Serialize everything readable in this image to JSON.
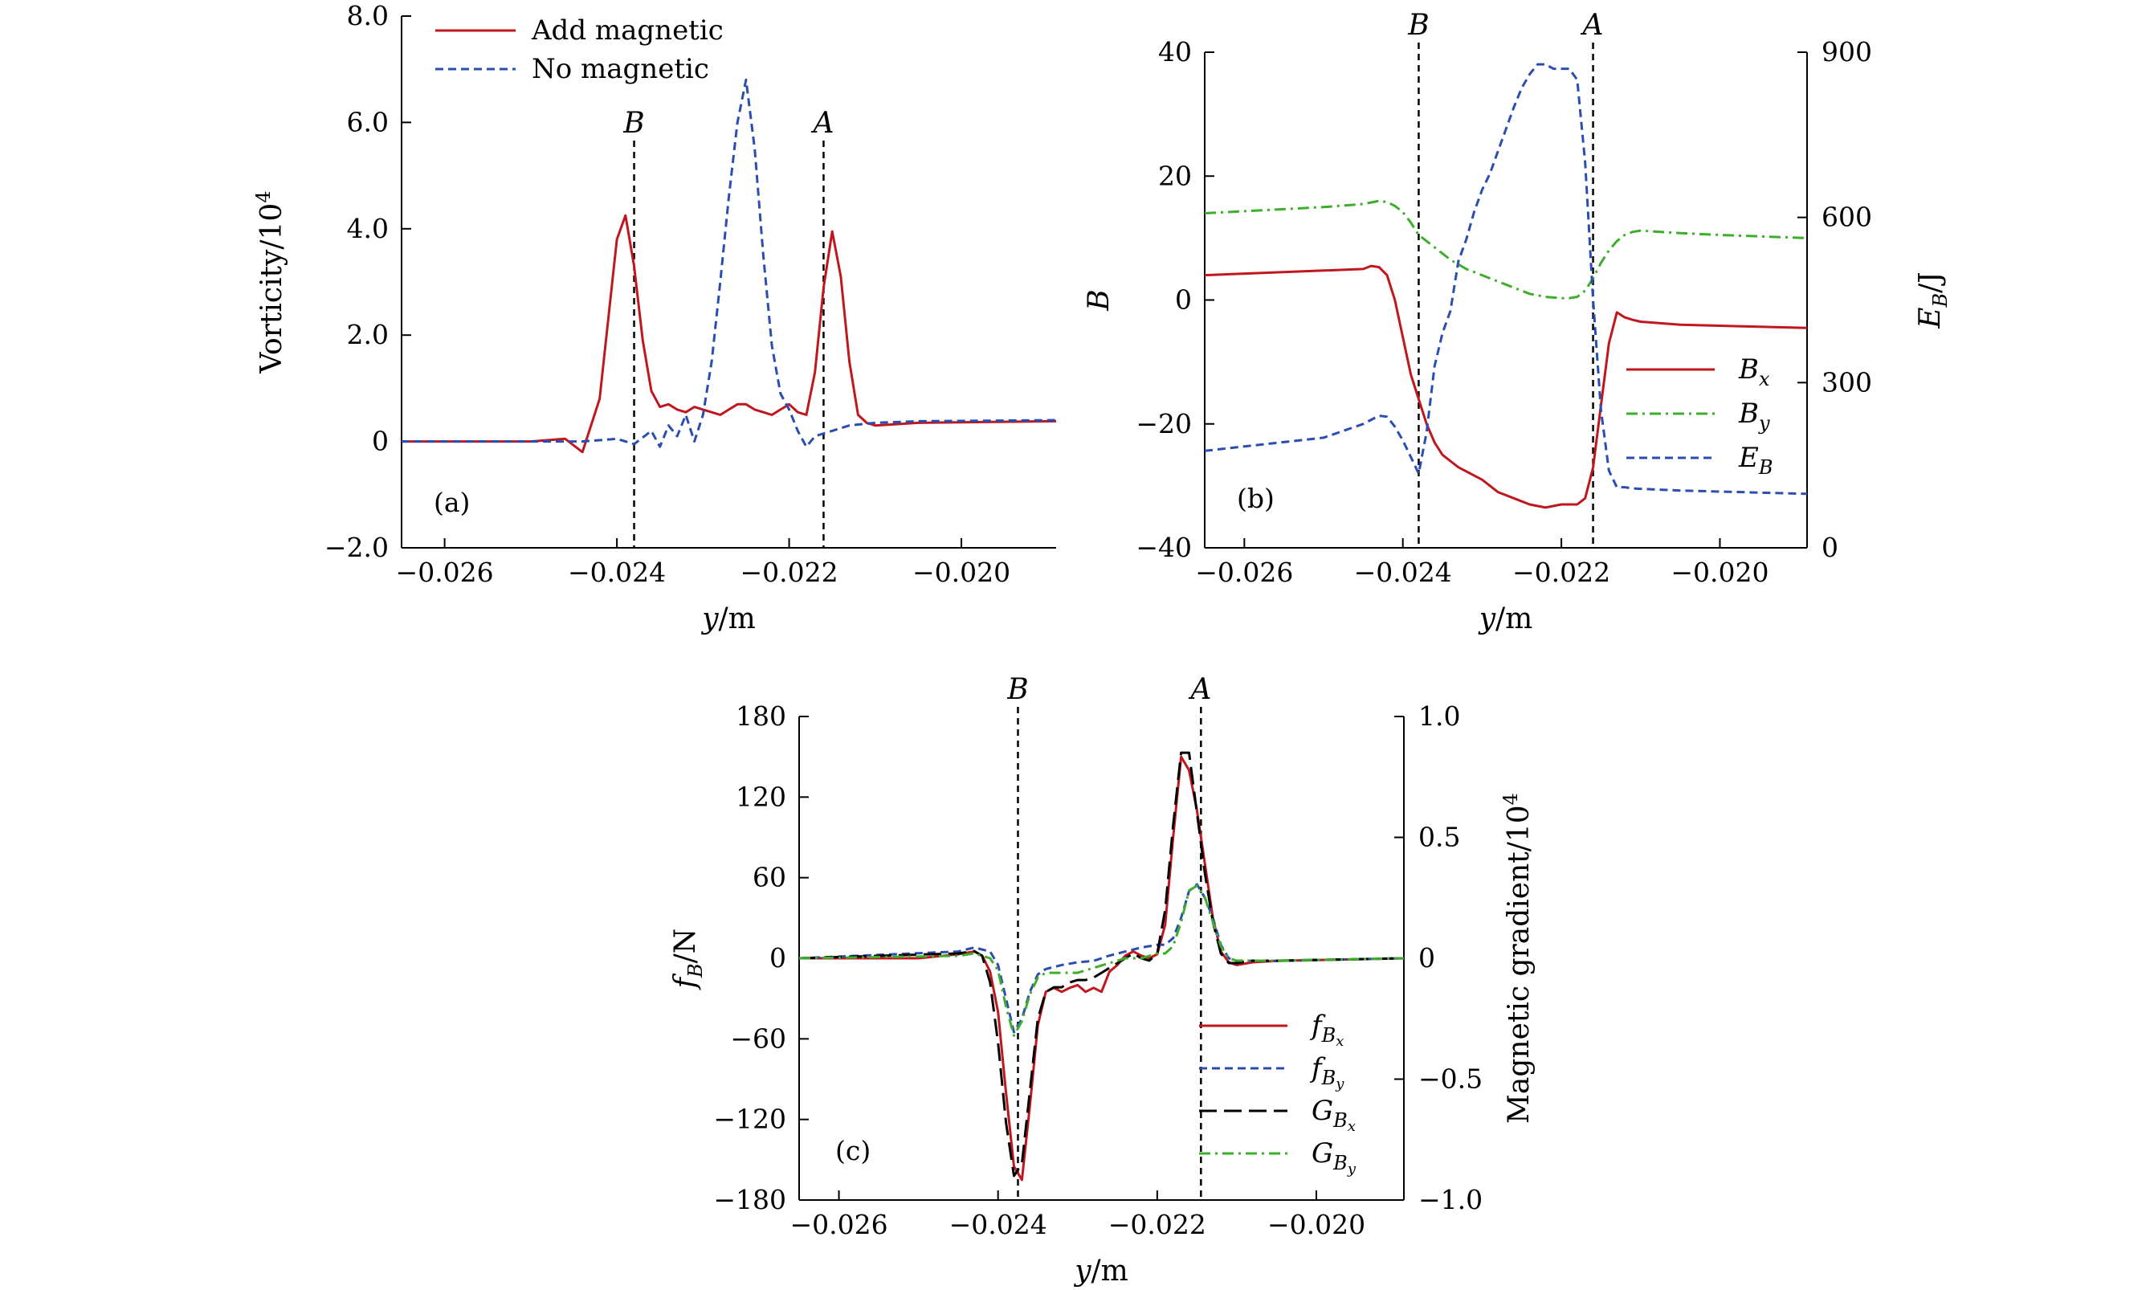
{
  "figure": {
    "colors": {
      "red": "#c0161d",
      "blue": "#2a4db0",
      "green": "#3dae2b",
      "black": "#000000"
    }
  },
  "chart_data": [
    {
      "id": "a",
      "type": "line",
      "panel_label": "(a)",
      "xlabel": "y/m",
      "ylabel": "Vorticity/10",
      "ylabel_exp": "4",
      "xlim": [
        -0.0265,
        -0.0189
      ],
      "ylim": [
        -2.0,
        8.0
      ],
      "xticks": [
        -0.026,
        -0.024,
        -0.022,
        -0.02
      ],
      "xtick_labels": [
        "−0.026",
        "−0.024",
        "−0.022",
        "−0.020"
      ],
      "yticks": [
        -2,
        0,
        2,
        4,
        6,
        8
      ],
      "ytick_labels": [
        "−2.0",
        "0",
        "2.0",
        "4.0",
        "6.0",
        "8.0"
      ],
      "vlines": [
        {
          "x": -0.0238,
          "label": "B"
        },
        {
          "x": -0.0216,
          "label": "A"
        }
      ],
      "legend_position": "top-left",
      "series": [
        {
          "name": "Add magnetic",
          "style": "solid",
          "color": "#c0161d",
          "axis": "left",
          "x": [
            -0.0265,
            -0.025,
            -0.0246,
            -0.0244,
            -0.0242,
            -0.024,
            -0.0239,
            -0.0238,
            -0.0237,
            -0.0236,
            -0.0235,
            -0.0234,
            -0.0233,
            -0.0232,
            -0.0231,
            -0.023,
            -0.0229,
            -0.0228,
            -0.0227,
            -0.0226,
            -0.0225,
            -0.0224,
            -0.0223,
            -0.0222,
            -0.0221,
            -0.022,
            -0.0219,
            -0.0218,
            -0.0217,
            -0.0216,
            -0.0215,
            -0.0214,
            -0.0213,
            -0.0212,
            -0.0211,
            -0.021,
            -0.0205,
            -0.0189
          ],
          "y": [
            0,
            0,
            0.05,
            -0.2,
            0.8,
            3.8,
            4.25,
            3.3,
            1.9,
            0.95,
            0.65,
            0.7,
            0.6,
            0.55,
            0.65,
            0.6,
            0.55,
            0.5,
            0.6,
            0.7,
            0.7,
            0.6,
            0.55,
            0.5,
            0.6,
            0.7,
            0.55,
            0.5,
            1.3,
            2.9,
            3.95,
            3.1,
            1.5,
            0.5,
            0.35,
            0.3,
            0.35,
            0.38
          ]
        },
        {
          "name": "No magnetic",
          "style": "dashed",
          "color": "#2a4db0",
          "axis": "left",
          "x": [
            -0.0265,
            -0.0244,
            -0.024,
            -0.0238,
            -0.0236,
            -0.0235,
            -0.0234,
            -0.0233,
            -0.0232,
            -0.0231,
            -0.023,
            -0.0229,
            -0.0228,
            -0.0227,
            -0.0226,
            -0.0225,
            -0.0224,
            -0.0223,
            -0.0222,
            -0.0221,
            -0.022,
            -0.0219,
            -0.0218,
            -0.0217,
            -0.0216,
            -0.0215,
            -0.0214,
            -0.0213,
            -0.021,
            -0.0205,
            -0.0189
          ],
          "y": [
            0,
            0,
            0.05,
            -0.05,
            0.2,
            -0.1,
            0.3,
            0.1,
            0.5,
            0.0,
            0.5,
            1.5,
            3.0,
            4.6,
            6.0,
            6.8,
            5.5,
            3.5,
            1.8,
            0.9,
            0.6,
            0.2,
            -0.1,
            0.1,
            0.15,
            0.2,
            0.25,
            0.3,
            0.35,
            0.38,
            0.4
          ]
        }
      ]
    },
    {
      "id": "b",
      "type": "line",
      "panel_label": "(b)",
      "xlabel": "y/m",
      "ylabel": "B",
      "ylabel_right": "E",
      "ylabel_right_sub": "B",
      "ylabel_right_unit": "/J",
      "xlim": [
        -0.0265,
        -0.0189
      ],
      "ylim": [
        -40,
        40
      ],
      "ylim_right": [
        0,
        900
      ],
      "xticks": [
        -0.026,
        -0.024,
        -0.022,
        -0.02
      ],
      "xtick_labels": [
        "−0.026",
        "−0.024",
        "−0.022",
        "−0.020"
      ],
      "yticks": [
        -40,
        -20,
        0,
        20,
        40
      ],
      "ytick_labels": [
        "−40",
        "−20",
        "0",
        "20",
        "40"
      ],
      "yticks_right": [
        0,
        300,
        600,
        900
      ],
      "ytick_labels_right": [
        "0",
        "300",
        "600",
        "900"
      ],
      "vlines": [
        {
          "x": -0.0238,
          "label": "B"
        },
        {
          "x": -0.0216,
          "label": "A"
        }
      ],
      "legend_position": "center-right",
      "series": [
        {
          "name": "B",
          "sub": "x",
          "style": "solid",
          "color": "#c0161d",
          "axis": "left",
          "x": [
            -0.0265,
            -0.0245,
            -0.0244,
            -0.0243,
            -0.0242,
            -0.0241,
            -0.024,
            -0.0239,
            -0.0238,
            -0.0237,
            -0.0236,
            -0.0235,
            -0.0234,
            -0.0233,
            -0.023,
            -0.0228,
            -0.0226,
            -0.0224,
            -0.0222,
            -0.022,
            -0.0218,
            -0.0217,
            -0.0216,
            -0.0215,
            -0.0214,
            -0.0213,
            -0.0212,
            -0.0211,
            -0.021,
            -0.0205,
            -0.0189
          ],
          "y": [
            4,
            5,
            5.5,
            5.3,
            4,
            0,
            -6,
            -12,
            -16,
            -20,
            -23,
            -25,
            -26,
            -27,
            -29,
            -31,
            -32,
            -33,
            -33.5,
            -33,
            -33,
            -32,
            -27,
            -17,
            -7,
            -2,
            -2.8,
            -3.2,
            -3.5,
            -4,
            -4.5
          ]
        },
        {
          "name": "B",
          "sub": "y",
          "style": "dashdot",
          "color": "#3dae2b",
          "axis": "left",
          "x": [
            -0.0265,
            -0.025,
            -0.0245,
            -0.0243,
            -0.0242,
            -0.0241,
            -0.024,
            -0.0239,
            -0.0238,
            -0.0236,
            -0.0234,
            -0.0232,
            -0.023,
            -0.0228,
            -0.0226,
            -0.0224,
            -0.0222,
            -0.022,
            -0.0219,
            -0.0218,
            -0.0217,
            -0.0216,
            -0.0215,
            -0.0214,
            -0.0213,
            -0.0212,
            -0.0211,
            -0.021,
            -0.0205,
            -0.02,
            -0.0189
          ],
          "y": [
            14,
            15,
            15.5,
            16,
            15.8,
            15.2,
            14.2,
            12.5,
            10.5,
            8.5,
            6.5,
            5.0,
            4.0,
            3.0,
            2.0,
            1.0,
            0.5,
            0.3,
            0.3,
            0.5,
            1.5,
            3.5,
            6.0,
            8.0,
            9.5,
            10.5,
            11,
            11.2,
            10.8,
            10.5,
            10
          ]
        },
        {
          "name": "E",
          "sub": "B",
          "style": "dashed",
          "color": "#2a4db0",
          "axis": "right",
          "x": [
            -0.0265,
            -0.025,
            -0.0245,
            -0.0243,
            -0.0242,
            -0.0241,
            -0.024,
            -0.0239,
            -0.0238,
            -0.0237,
            -0.0236,
            -0.0235,
            -0.0234,
            -0.0233,
            -0.0232,
            -0.0231,
            -0.023,
            -0.0229,
            -0.0228,
            -0.0227,
            -0.0226,
            -0.0225,
            -0.0224,
            -0.0223,
            -0.0222,
            -0.0221,
            -0.022,
            -0.0219,
            -0.0218,
            -0.0217,
            -0.0216,
            -0.0215,
            -0.0214,
            -0.0213,
            -0.0212,
            -0.0211,
            -0.021,
            -0.0205,
            -0.0189
          ],
          "y": [
            176,
            200,
            225,
            240,
            238,
            220,
            195,
            165,
            135,
            210,
            330,
            390,
            430,
            520,
            560,
            610,
            650,
            680,
            720,
            760,
            800,
            835,
            860,
            878,
            878,
            870,
            870,
            870,
            850,
            700,
            450,
            250,
            140,
            110,
            110,
            108,
            107,
            104,
            98
          ]
        }
      ]
    },
    {
      "id": "c",
      "type": "line",
      "panel_label": "(c)",
      "xlabel": "y/m",
      "ylabel": "f",
      "ylabel_sub": "B",
      "ylabel_unit": "/N",
      "ylabel_right": "Magnetic gradient/10",
      "ylabel_right_exp": "4",
      "xlim": [
        -0.0265,
        -0.0189
      ],
      "ylim": [
        -180,
        180
      ],
      "ylim_right": [
        -1.0,
        1.0
      ],
      "xticks": [
        -0.026,
        -0.024,
        -0.022,
        -0.02
      ],
      "xtick_labels": [
        "−0.026",
        "−0.024",
        "−0.022",
        "−0.020"
      ],
      "yticks": [
        -180,
        -120,
        -60,
        0,
        60,
        120,
        180
      ],
      "ytick_labels": [
        "−180",
        "−120",
        "−60",
        "0",
        "60",
        "120",
        "180"
      ],
      "yticks_right": [
        -1.0,
        -0.5,
        0,
        0.5,
        1.0
      ],
      "ytick_labels_right": [
        "−1.0",
        "−0.5",
        "0",
        "0.5",
        "1.0"
      ],
      "vlines": [
        {
          "x": -0.02375,
          "label": "B"
        },
        {
          "x": -0.02145,
          "label": "A"
        }
      ],
      "legend_position": "bottom-right",
      "series": [
        {
          "name": "f",
          "sub": "Bx",
          "style": "solid",
          "color": "#c0161d",
          "axis": "left",
          "x": [
            -0.0265,
            -0.025,
            -0.0245,
            -0.0243,
            -0.0242,
            -0.0241,
            -0.024,
            -0.0239,
            -0.0238,
            -0.0237,
            -0.0236,
            -0.0235,
            -0.0234,
            -0.0233,
            -0.0232,
            -0.0231,
            -0.023,
            -0.0229,
            -0.0228,
            -0.0227,
            -0.0226,
            -0.0225,
            -0.0224,
            -0.0223,
            -0.0222,
            -0.0221,
            -0.022,
            -0.0219,
            -0.0218,
            -0.0217,
            -0.0216,
            -0.0215,
            -0.0214,
            -0.0213,
            -0.0212,
            -0.0211,
            -0.021,
            -0.0208,
            -0.0205,
            -0.0189
          ],
          "y": [
            0,
            0,
            3,
            5,
            2,
            -10,
            -40,
            -100,
            -155,
            -165,
            -110,
            -50,
            -25,
            -22,
            -25,
            -22,
            -20,
            -25,
            -22,
            -25,
            -10,
            -5,
            2,
            5,
            2,
            0,
            3,
            25,
            90,
            150,
            140,
            110,
            70,
            30,
            5,
            -3,
            -5,
            -3,
            -2,
            0
          ]
        },
        {
          "name": "f",
          "sub": "By",
          "style": "dashed",
          "color": "#2a4db0",
          "axis": "left",
          "x": [
            -0.0265,
            -0.0245,
            -0.0243,
            -0.0241,
            -0.024,
            -0.0239,
            -0.0238,
            -0.0237,
            -0.0236,
            -0.0235,
            -0.0234,
            -0.0232,
            -0.023,
            -0.0228,
            -0.0226,
            -0.0224,
            -0.0222,
            -0.022,
            -0.0219,
            -0.0218,
            -0.0217,
            -0.0216,
            -0.0215,
            -0.0214,
            -0.0213,
            -0.0212,
            -0.0211,
            -0.021,
            -0.0205,
            -0.0189
          ],
          "y": [
            0,
            5,
            8,
            5,
            -5,
            -30,
            -55,
            -45,
            -25,
            -12,
            -8,
            -5,
            -3,
            -2,
            2,
            5,
            8,
            10,
            10,
            15,
            30,
            50,
            55,
            45,
            30,
            10,
            0,
            -2,
            -2,
            0
          ]
        },
        {
          "name": "G",
          "sub": "Bx",
          "style": "longdash",
          "color": "#000000",
          "axis": "right",
          "x": [
            -0.0265,
            -0.0245,
            -0.0243,
            -0.0242,
            -0.0241,
            -0.024,
            -0.0239,
            -0.0238,
            -0.0237,
            -0.0236,
            -0.0235,
            -0.0234,
            -0.0233,
            -0.0232,
            -0.0231,
            -0.023,
            -0.0229,
            -0.0228,
            -0.0227,
            -0.0226,
            -0.0225,
            -0.0224,
            -0.0223,
            -0.0222,
            -0.0221,
            -0.022,
            -0.0219,
            -0.0218,
            -0.0217,
            -0.0216,
            -0.0215,
            -0.0214,
            -0.0213,
            -0.0212,
            -0.0211,
            -0.021,
            -0.0208,
            -0.0205,
            -0.0189
          ],
          "y": [
            0,
            0.02,
            0.03,
            0.01,
            -0.1,
            -0.35,
            -0.68,
            -0.9,
            -0.85,
            -0.55,
            -0.25,
            -0.14,
            -0.12,
            -0.12,
            -0.1,
            -0.09,
            -0.09,
            -0.08,
            -0.06,
            -0.04,
            -0.02,
            0.0,
            0.02,
            0.0,
            -0.01,
            0.02,
            0.2,
            0.55,
            0.85,
            0.85,
            0.6,
            0.35,
            0.15,
            0.02,
            -0.02,
            -0.02,
            -0.01,
            -0.01,
            0
          ]
        },
        {
          "name": "G",
          "sub": "By",
          "style": "dashdot",
          "color": "#3dae2b",
          "axis": "right",
          "x": [
            -0.0265,
            -0.0245,
            -0.0243,
            -0.0241,
            -0.024,
            -0.0239,
            -0.0238,
            -0.0237,
            -0.0236,
            -0.0235,
            -0.0234,
            -0.0232,
            -0.023,
            -0.0228,
            -0.0226,
            -0.0224,
            -0.0222,
            -0.022,
            -0.0219,
            -0.0218,
            -0.0217,
            -0.0216,
            -0.0215,
            -0.0214,
            -0.0213,
            -0.0212,
            -0.0211,
            -0.021,
            -0.0205,
            -0.0189
          ],
          "y": [
            0,
            0.01,
            0.02,
            0.0,
            -0.05,
            -0.2,
            -0.32,
            -0.26,
            -0.15,
            -0.08,
            -0.06,
            -0.06,
            -0.06,
            -0.04,
            -0.02,
            0.0,
            0.0,
            0.02,
            0.02,
            0.05,
            0.15,
            0.28,
            0.3,
            0.25,
            0.15,
            0.05,
            0.0,
            -0.01,
            -0.01,
            0
          ]
        }
      ]
    }
  ]
}
